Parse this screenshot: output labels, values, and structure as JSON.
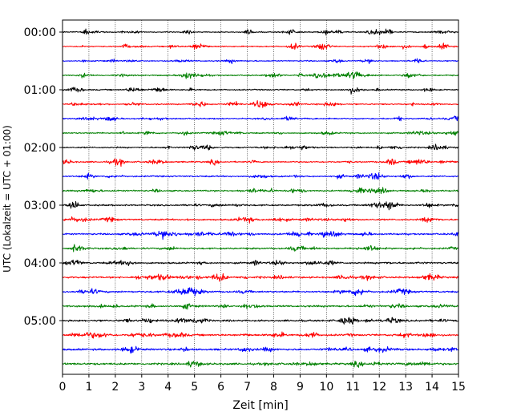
{
  "chart_data": {
    "type": "line",
    "xlabel": "Zeit  [min]",
    "ylabel": "UTC (Lokalzeit = UTC + 01:00)",
    "xlim": [
      0,
      15
    ],
    "x_ticks": [
      0,
      1,
      2,
      3,
      4,
      5,
      6,
      7,
      8,
      9,
      10,
      11,
      12,
      13,
      14,
      15
    ],
    "x_tick_labels": [
      "0",
      "1",
      "2",
      "3",
      "4",
      "5",
      "6",
      "7",
      "8",
      "9",
      "10",
      "11",
      "12",
      "13",
      "14",
      "15"
    ],
    "y_tick_labels": [
      "00:00",
      "01:00",
      "02:00",
      "03:00",
      "04:00",
      "05:00"
    ],
    "traces_per_hour": 4,
    "trace_count": 24,
    "trace_minutes": 15,
    "color_cycle": [
      "#000000",
      "#ff0000",
      "#0000ff",
      "#008000"
    ],
    "grid": {
      "x": true,
      "y": false,
      "style": "dotted"
    }
  }
}
